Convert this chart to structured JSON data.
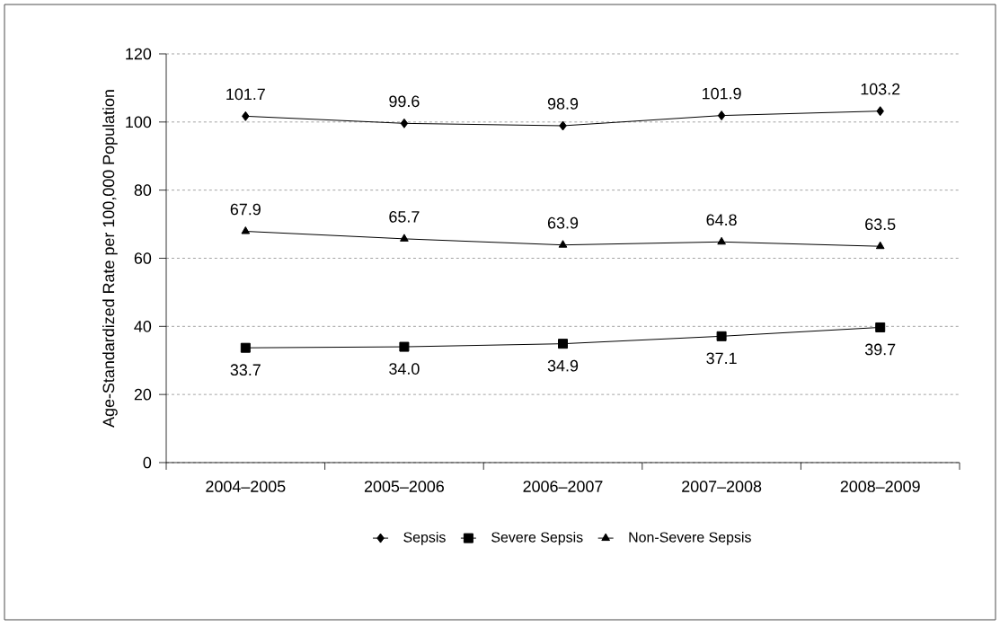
{
  "chart_data": {
    "type": "line",
    "ylabel": "Age-Standardized Rate per 100,000 Population",
    "categories": [
      "2004–2005",
      "2005–2006",
      "2006–2007",
      "2007–2008",
      "2008–2009"
    ],
    "series": [
      {
        "name": "Sepsis",
        "color": "#000000",
        "marker": "diamond",
        "values": [
          101.7,
          99.6,
          98.9,
          101.9,
          103.2
        ],
        "value_labels": [
          "101.7",
          "99.6",
          "98.9",
          "101.9",
          "103.2"
        ]
      },
      {
        "name": "Severe Sepsis",
        "color": "#000000",
        "marker": "square",
        "values": [
          33.7,
          34.0,
          34.9,
          37.1,
          39.7
        ],
        "value_labels": [
          "33.7",
          "34.0",
          "34.9",
          "37.1",
          "39.7"
        ]
      },
      {
        "name": "Non-Severe Sepsis",
        "color": "#000000",
        "marker": "triangle",
        "values": [
          67.9,
          65.7,
          63.9,
          64.8,
          63.5
        ],
        "value_labels": [
          "67.9",
          "65.7",
          "63.9",
          "64.8",
          "63.5"
        ]
      }
    ],
    "ylim": [
      0,
      120
    ],
    "yticks": [
      0,
      20,
      40,
      60,
      80,
      100,
      120
    ],
    "grid": "y",
    "legend": "bottom",
    "line_style": "solid"
  }
}
